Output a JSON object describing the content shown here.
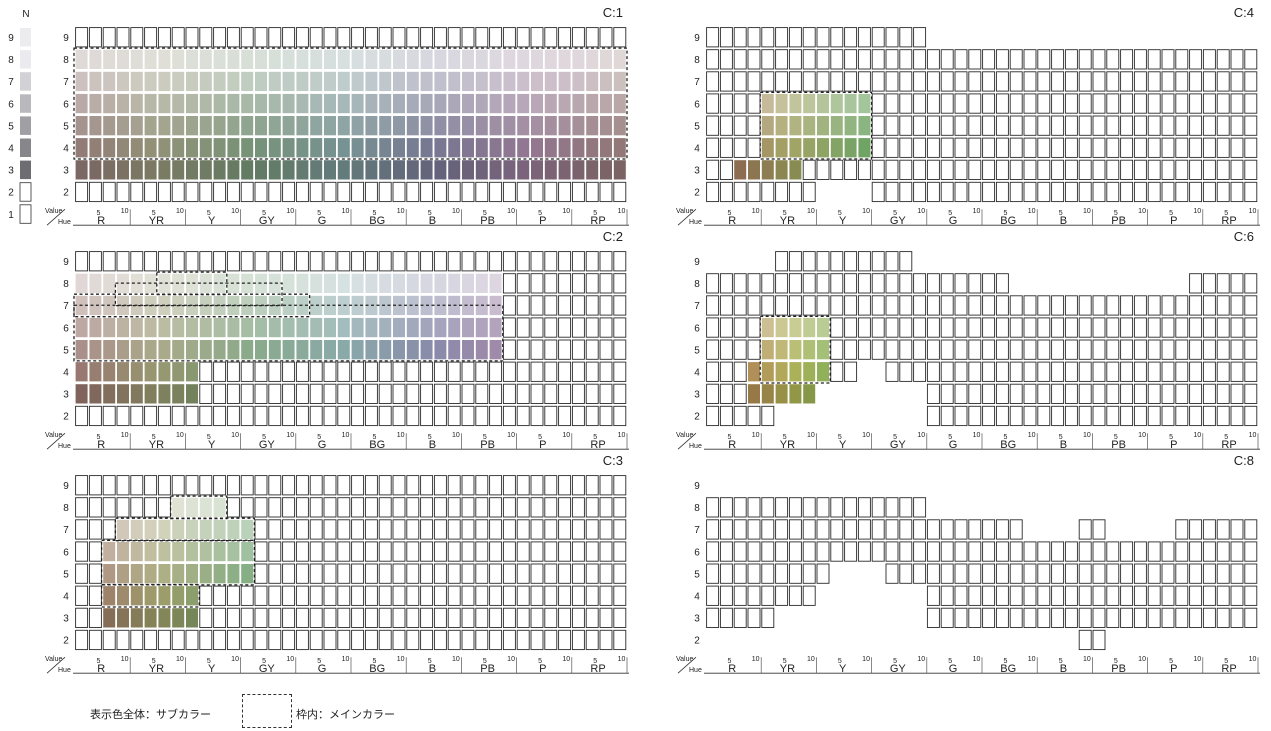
{
  "hue_labels": [
    "R",
    "YR",
    "Y",
    "GY",
    "G",
    "BG",
    "B",
    "PB",
    "P",
    "RP"
  ],
  "hue_minor_ticks": [
    "5",
    "10"
  ],
  "value_label": "Value",
  "hue_label": "Hue",
  "neutral_label": "N",
  "neutral_levels": [
    9,
    8,
    7,
    6,
    5,
    4,
    3,
    2,
    1
  ],
  "value_rows": [
    9,
    8,
    7,
    6,
    5,
    4,
    3,
    2
  ],
  "legend": {
    "sub_color": "表示色全体：サブカラー",
    "main_color": "枠内：メインカラー"
  },
  "panels": [
    {
      "title": "C:1",
      "outline": [
        {
          "row": 9,
          "from": 1,
          "to": 40
        },
        {
          "row": 2,
          "from": 1,
          "to": 40
        }
      ],
      "filled": [
        {
          "row": 8,
          "from": 1,
          "to": 40
        },
        {
          "row": 7,
          "from": 1,
          "to": 40
        },
        {
          "row": 6,
          "from": 1,
          "to": 40
        },
        {
          "row": 5,
          "from": 1,
          "to": 40
        },
        {
          "row": 4,
          "from": 1,
          "to": 40
        },
        {
          "row": 3,
          "from": 1,
          "to": 40
        }
      ],
      "main_region": [
        {
          "rows": [
            8,
            4
          ],
          "from": 1,
          "to": 40
        }
      ]
    },
    {
      "title": "C:2",
      "outline": [
        {
          "row": 9,
          "from": 1,
          "to": 40
        },
        {
          "row": 8,
          "from": 32,
          "to": 40
        },
        {
          "row": 7,
          "from": 32,
          "to": 40
        },
        {
          "row": 6,
          "from": 32,
          "to": 40
        },
        {
          "row": 5,
          "from": 32,
          "to": 40
        },
        {
          "row": 4,
          "from": 10,
          "to": 40
        },
        {
          "row": 3,
          "from": 10,
          "to": 40
        },
        {
          "row": 2,
          "from": 1,
          "to": 40
        }
      ],
      "filled": [
        {
          "row": 8,
          "from": 1,
          "to": 31
        },
        {
          "row": 7,
          "from": 1,
          "to": 31
        },
        {
          "row": 6,
          "from": 1,
          "to": 31
        },
        {
          "row": 5,
          "from": 1,
          "to": 31
        },
        {
          "row": 4,
          "from": 1,
          "to": 9
        },
        {
          "row": 3,
          "from": 1,
          "to": 9
        }
      ],
      "main_region": [
        {
          "rows": [
            8,
            8
          ],
          "from": 7,
          "to": 11
        },
        {
          "rows": [
            7.5,
            7.5
          ],
          "from": 4,
          "to": 15
        },
        {
          "rows": [
            7,
            7
          ],
          "from": 1,
          "to": 17
        },
        {
          "rows": [
            6.5,
            5
          ],
          "from": 1,
          "to": 31
        }
      ]
    },
    {
      "title": "C:3",
      "outline": [
        {
          "row": 9,
          "from": 1,
          "to": 40
        },
        {
          "row": 8,
          "from": 1,
          "to": 7
        },
        {
          "row": 8,
          "from": 12,
          "to": 40
        },
        {
          "row": 7,
          "from": 1,
          "to": 3
        },
        {
          "row": 7,
          "from": 14,
          "to": 40
        },
        {
          "row": 6,
          "from": 1,
          "to": 2
        },
        {
          "row": 6,
          "from": 14,
          "to": 40
        },
        {
          "row": 5,
          "from": 1,
          "to": 2
        },
        {
          "row": 5,
          "from": 14,
          "to": 40
        },
        {
          "row": 4,
          "from": 1,
          "to": 2
        },
        {
          "row": 4,
          "from": 10,
          "to": 40
        },
        {
          "row": 3,
          "from": 1,
          "to": 2
        },
        {
          "row": 3,
          "from": 10,
          "to": 40
        },
        {
          "row": 2,
          "from": 1,
          "to": 40
        }
      ],
      "filled": [
        {
          "row": 8,
          "from": 8,
          "to": 11
        },
        {
          "row": 7,
          "from": 4,
          "to": 13
        },
        {
          "row": 6,
          "from": 3,
          "to": 13
        },
        {
          "row": 5,
          "from": 3,
          "to": 13
        },
        {
          "row": 4,
          "from": 3,
          "to": 9
        },
        {
          "row": 3,
          "from": 3,
          "to": 9
        }
      ],
      "main_region": [
        {
          "rows": [
            8,
            8
          ],
          "from": 8,
          "to": 11
        },
        {
          "rows": [
            7,
            7
          ],
          "from": 4,
          "to": 13
        },
        {
          "rows": [
            6,
            5
          ],
          "from": 3,
          "to": 13
        },
        {
          "rows": [
            4,
            4
          ],
          "from": 3,
          "to": 9
        }
      ]
    },
    {
      "title": "C:4",
      "outline": [
        {
          "row": 9,
          "from": 1,
          "to": 16
        },
        {
          "row": 8,
          "from": 1,
          "to": 40
        },
        {
          "row": 7,
          "from": 1,
          "to": 40
        },
        {
          "row": 6,
          "from": 1,
          "to": 4
        },
        {
          "row": 6,
          "from": 13,
          "to": 40
        },
        {
          "row": 5,
          "from": 1,
          "to": 4
        },
        {
          "row": 5,
          "from": 13,
          "to": 40
        },
        {
          "row": 4,
          "from": 1,
          "to": 4
        },
        {
          "row": 4,
          "from": 13,
          "to": 40
        },
        {
          "row": 3,
          "from": 1,
          "to": 2
        },
        {
          "row": 3,
          "from": 8,
          "to": 40
        },
        {
          "row": 2,
          "from": 1,
          "to": 8
        },
        {
          "row": 2,
          "from": 13,
          "to": 40
        }
      ],
      "filled": [
        {
          "row": 6,
          "from": 5,
          "to": 12
        },
        {
          "row": 5,
          "from": 5,
          "to": 12
        },
        {
          "row": 4,
          "from": 5,
          "to": 12
        },
        {
          "row": 3,
          "from": 3,
          "to": 7
        }
      ],
      "main_region": [
        {
          "rows": [
            6,
            4
          ],
          "from": 5,
          "to": 12
        }
      ]
    },
    {
      "title": "C:6",
      "outline": [
        {
          "row": 9,
          "from": 6,
          "to": 15
        },
        {
          "row": 8,
          "from": 1,
          "to": 22
        },
        {
          "row": 8,
          "from": 36,
          "to": 40
        },
        {
          "row": 7,
          "from": 1,
          "to": 40
        },
        {
          "row": 6,
          "from": 1,
          "to": 4
        },
        {
          "row": 6,
          "from": 10,
          "to": 40
        },
        {
          "row": 5,
          "from": 1,
          "to": 4
        },
        {
          "row": 5,
          "from": 10,
          "to": 40
        },
        {
          "row": 4,
          "from": 1,
          "to": 3
        },
        {
          "row": 4,
          "from": 10,
          "to": 11
        },
        {
          "row": 4,
          "from": 14,
          "to": 40
        },
        {
          "row": 3,
          "from": 1,
          "to": 3
        },
        {
          "row": 3,
          "from": 17,
          "to": 40
        },
        {
          "row": 2,
          "from": 1,
          "to": 5
        },
        {
          "row": 2,
          "from": 17,
          "to": 40
        }
      ],
      "filled": [
        {
          "row": 6,
          "from": 5,
          "to": 9
        },
        {
          "row": 5,
          "from": 5,
          "to": 9
        },
        {
          "row": 4,
          "from": 4,
          "to": 9
        },
        {
          "row": 3,
          "from": 4,
          "to": 8
        }
      ],
      "main_region": [
        {
          "rows": [
            6,
            4
          ],
          "from": 5,
          "to": 9
        }
      ]
    },
    {
      "title": "C:8",
      "outline": [
        {
          "row": 8,
          "from": 1,
          "to": 16
        },
        {
          "row": 7,
          "from": 1,
          "to": 23
        },
        {
          "row": 7,
          "from": 28,
          "to": 29
        },
        {
          "row": 7,
          "from": 35,
          "to": 40
        },
        {
          "row": 6,
          "from": 1,
          "to": 40
        },
        {
          "row": 5,
          "from": 1,
          "to": 9
        },
        {
          "row": 5,
          "from": 14,
          "to": 40
        },
        {
          "row": 4,
          "from": 1,
          "to": 8
        },
        {
          "row": 4,
          "from": 17,
          "to": 40
        },
        {
          "row": 3,
          "from": 1,
          "to": 5
        },
        {
          "row": 3,
          "from": 17,
          "to": 40
        },
        {
          "row": 2,
          "from": 28,
          "to": 29
        }
      ],
      "filled": [],
      "main_region": []
    }
  ]
}
